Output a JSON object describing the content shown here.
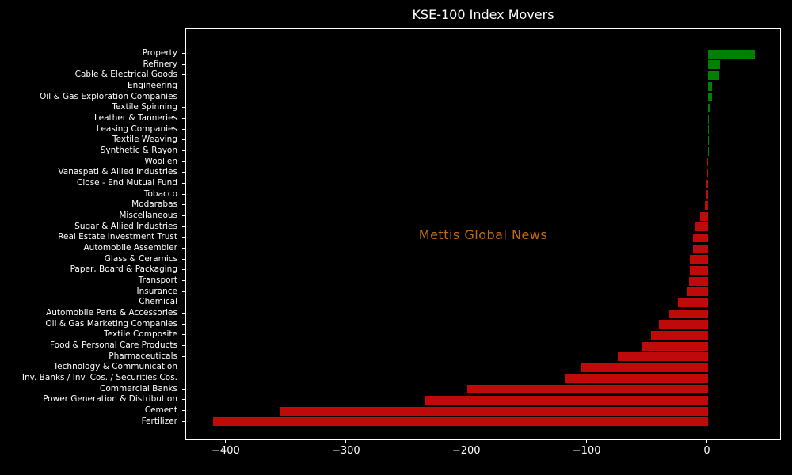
{
  "title": "KSE-100 Index Movers",
  "watermark": {
    "text": "Mettis Global News",
    "color": "#c4690e"
  },
  "colors": {
    "background": "#000000",
    "positive_bar": "#008000",
    "negative_bar": "#bf0a0a",
    "axis": "#ffffff",
    "text": "#ffffff"
  },
  "chart_data": {
    "type": "bar",
    "orientation": "horizontal",
    "title": "KSE-100 Index Movers",
    "xlabel": "",
    "ylabel": "",
    "grid": false,
    "legend": false,
    "xlim": [
      -433.5,
      61.5
    ],
    "xticks": [
      -400,
      -300,
      -200,
      -100,
      0
    ],
    "xtick_labels": [
      "−400",
      "−300",
      "−200",
      "−100",
      "0"
    ],
    "categories": [
      "Property",
      "Refinery",
      "Cable & Electrical Goods",
      "Engineering",
      "Oil & Gas Exploration Companies",
      "Textile Spinning",
      "Leather & Tanneries",
      "Leasing Companies",
      "Textile Weaving",
      "Synthetic & Rayon",
      "Woollen",
      "Vanaspati & Allied Industries",
      "Close - End Mutual Fund",
      "Tobacco",
      "Modarabas",
      "Miscellaneous",
      "Sugar & Allied Industries",
      "Real Estate Investment Trust",
      "Automobile Assembler",
      "Glass & Ceramics",
      "Paper, Board & Packaging",
      "Transport",
      "Insurance",
      "Chemical",
      "Automobile Parts & Accessories",
      "Oil & Gas Marketing Companies",
      "Textile Composite",
      "Food & Personal Care Products",
      "Pharmaceuticals",
      "Technology & Communication",
      "Inv. Banks / Inv. Cos. / Securities Cos.",
      "Commercial Banks",
      "Power Generation & Distribution",
      "Cement",
      "Fertilizer"
    ],
    "values": [
      39,
      10.3,
      9.7,
      3.7,
      3.3,
      1.5,
      1.1,
      0.6,
      0.25,
      0.1,
      -0.4,
      -0.6,
      -0.8,
      -1.2,
      -2.5,
      -6,
      -10,
      -12.2,
      -12.4,
      -14.8,
      -14.9,
      -15.2,
      -17.3,
      -24.6,
      -31.8,
      -40.4,
      -47.4,
      -55.1,
      -75,
      -106,
      -119,
      -200,
      -235,
      -356,
      -411
    ]
  }
}
